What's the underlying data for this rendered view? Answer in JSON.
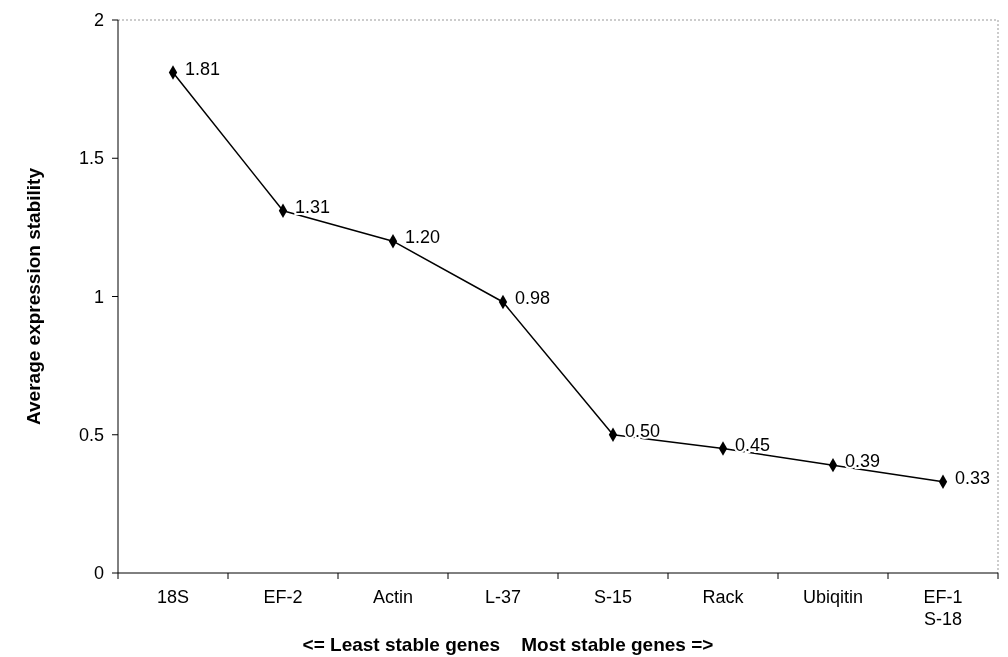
{
  "chart_data": {
    "type": "line",
    "xlabel": "<= Least stable genes    Most stable genes =>",
    "ylabel": "Average expression stability",
    "categories": [
      "18S",
      "EF-2",
      "Actin",
      "L-37",
      "S-15",
      "Rack",
      "Ubiqitin",
      "EF-1\nS-18"
    ],
    "series": [
      {
        "color": "#000000",
        "values": [
          1.81,
          1.31,
          1.2,
          0.98,
          0.5,
          0.45,
          0.39,
          0.33
        ],
        "value_labels": [
          "1.81",
          "1.31",
          "1.20",
          "0.98",
          "0.50",
          "0.45",
          "0.39",
          "0.33"
        ]
      }
    ],
    "ylim": [
      0,
      2
    ],
    "yticks": [
      0,
      0.5,
      1,
      1.5,
      2
    ],
    "marker": "diamond",
    "line_style": "solid",
    "grid": false
  }
}
